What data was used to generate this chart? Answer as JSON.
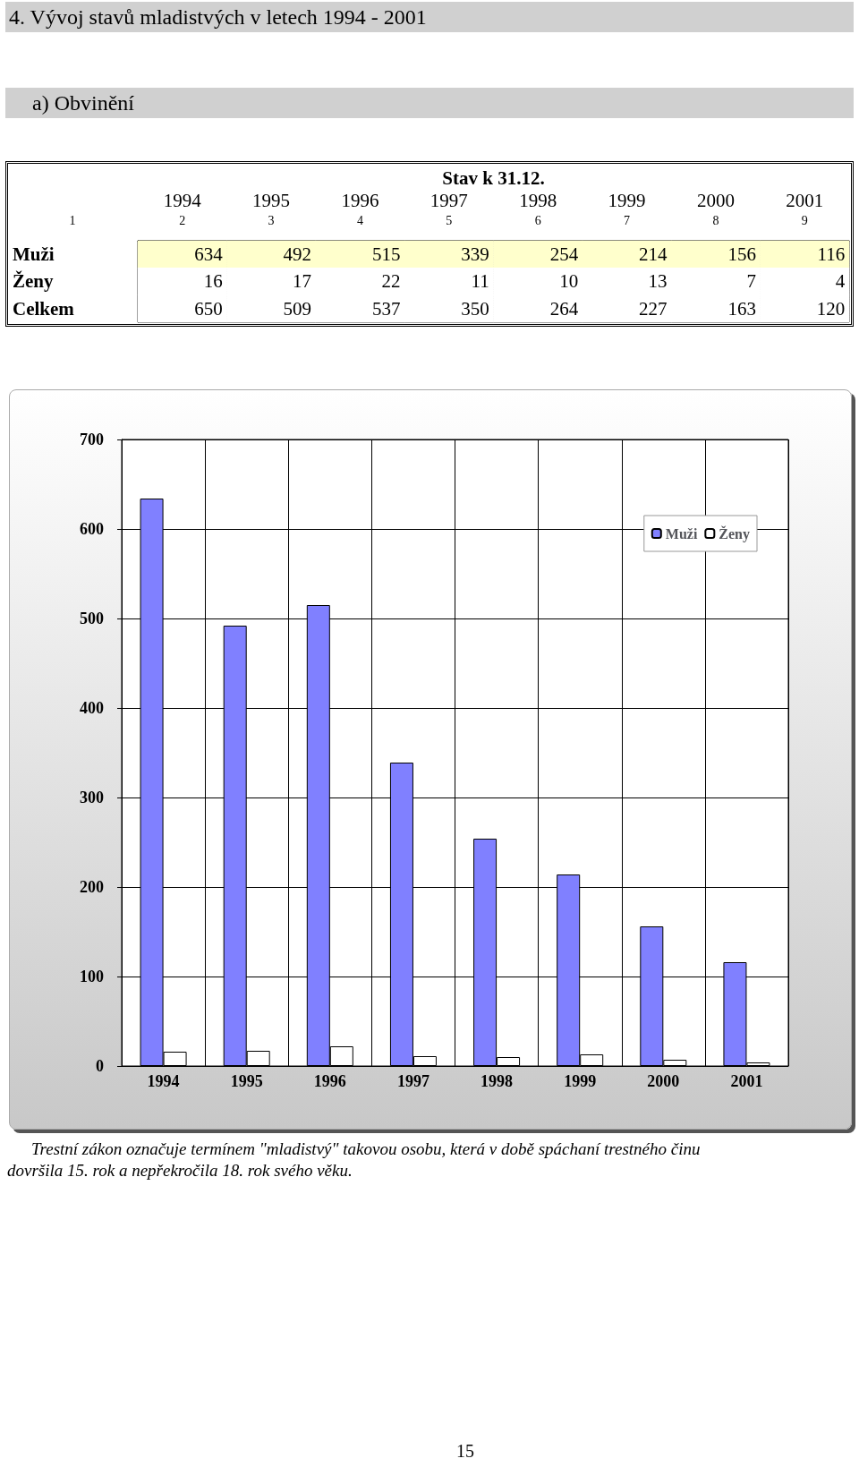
{
  "chart_data": [
    {
      "type": "heatmap",
      "title": "4. Vývoj stavů mladistvých v letech 1994 - 2001",
      "subtitle": "a) Obvinění",
      "xlabel": "Stav k 31.12.",
      "categories": [
        "1994",
        "1995",
        "1996",
        "1997",
        "1998",
        "1999",
        "2000",
        "2001"
      ],
      "y_categories": [
        "Muži",
        "Ženy",
        "Celkem"
      ],
      "cells": [
        [
          634,
          492,
          515,
          339,
          254,
          214,
          156,
          116
        ],
        [
          16,
          17,
          22,
          11,
          10,
          13,
          7,
          4
        ],
        [
          650,
          509,
          537,
          350,
          264,
          227,
          163,
          120
        ]
      ],
      "data_labels": true,
      "annotations": [
        "1",
        "2",
        "3",
        "4",
        "5",
        "6",
        "7",
        "8",
        "9"
      ]
    },
    {
      "type": "bar",
      "categories": [
        "1994",
        "1995",
        "1996",
        "1997",
        "1998",
        "1999",
        "2000",
        "2001"
      ],
      "series": [
        {
          "name": "Muži",
          "color": "#8080ff",
          "values": [
            634,
            492,
            515,
            339,
            254,
            214,
            156,
            116
          ]
        },
        {
          "name": "Ženy",
          "color": "#ffffff",
          "values": [
            16,
            17,
            22,
            11,
            10,
            13,
            7,
            4
          ]
        }
      ],
      "annotations": [
        "Trestní zákon označuje termínem \"mladistvý\" takovou osobu, která v době spáchaní trestného činu dovršila 15. rok a nepřekročila 18. rok svého věku.",
        "15"
      ],
      "ylim": [
        0,
        700
      ],
      "yticks": [
        0,
        100,
        200,
        300,
        400,
        500,
        600,
        700
      ],
      "grid": true,
      "legend": "top right"
    }
  ]
}
